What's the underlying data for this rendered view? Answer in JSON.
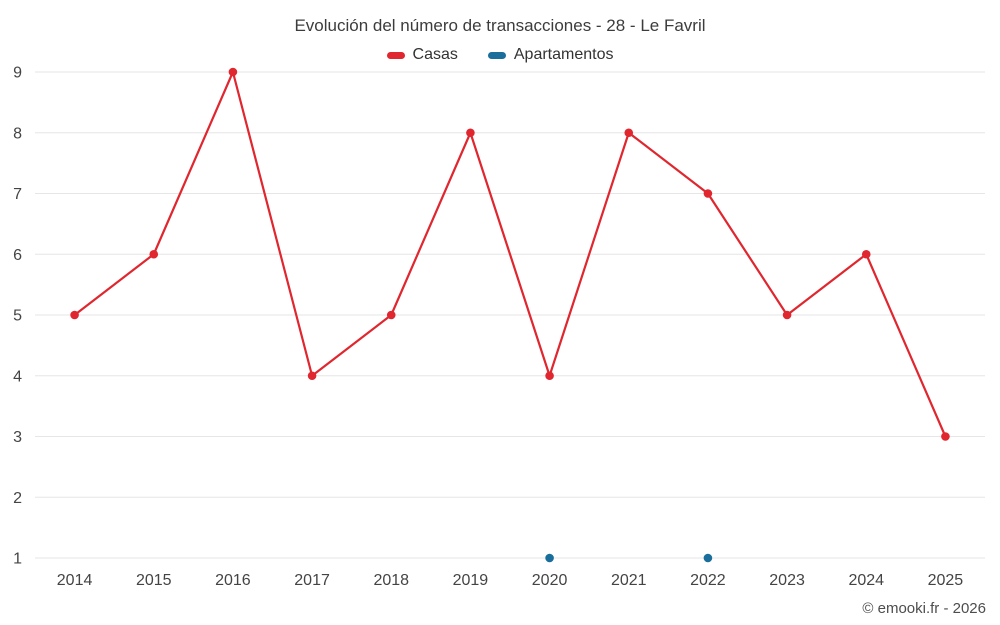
{
  "footer": "© emooki.fr - 2026",
  "chart_data": {
    "type": "line",
    "title": "Evolución del número de transacciones - 28 - Le Favril",
    "xlabel": "",
    "ylabel": "",
    "categories": [
      "2014",
      "2015",
      "2016",
      "2017",
      "2018",
      "2019",
      "2020",
      "2021",
      "2022",
      "2023",
      "2024",
      "2025"
    ],
    "series": [
      {
        "name": "Casas",
        "color": "#e0262e",
        "values": [
          5,
          6,
          9,
          4,
          5,
          8,
          4,
          8,
          7,
          5,
          6,
          3
        ]
      },
      {
        "name": "Apartamentos",
        "color": "#1a6e9c",
        "values": [
          null,
          null,
          null,
          null,
          null,
          null,
          1,
          null,
          1,
          null,
          null,
          null
        ]
      }
    ],
    "ylim": [
      1,
      9
    ],
    "yticks": [
      1,
      2,
      3,
      4,
      5,
      6,
      7,
      8,
      9
    ],
    "grid": true,
    "legend_position": "top"
  }
}
